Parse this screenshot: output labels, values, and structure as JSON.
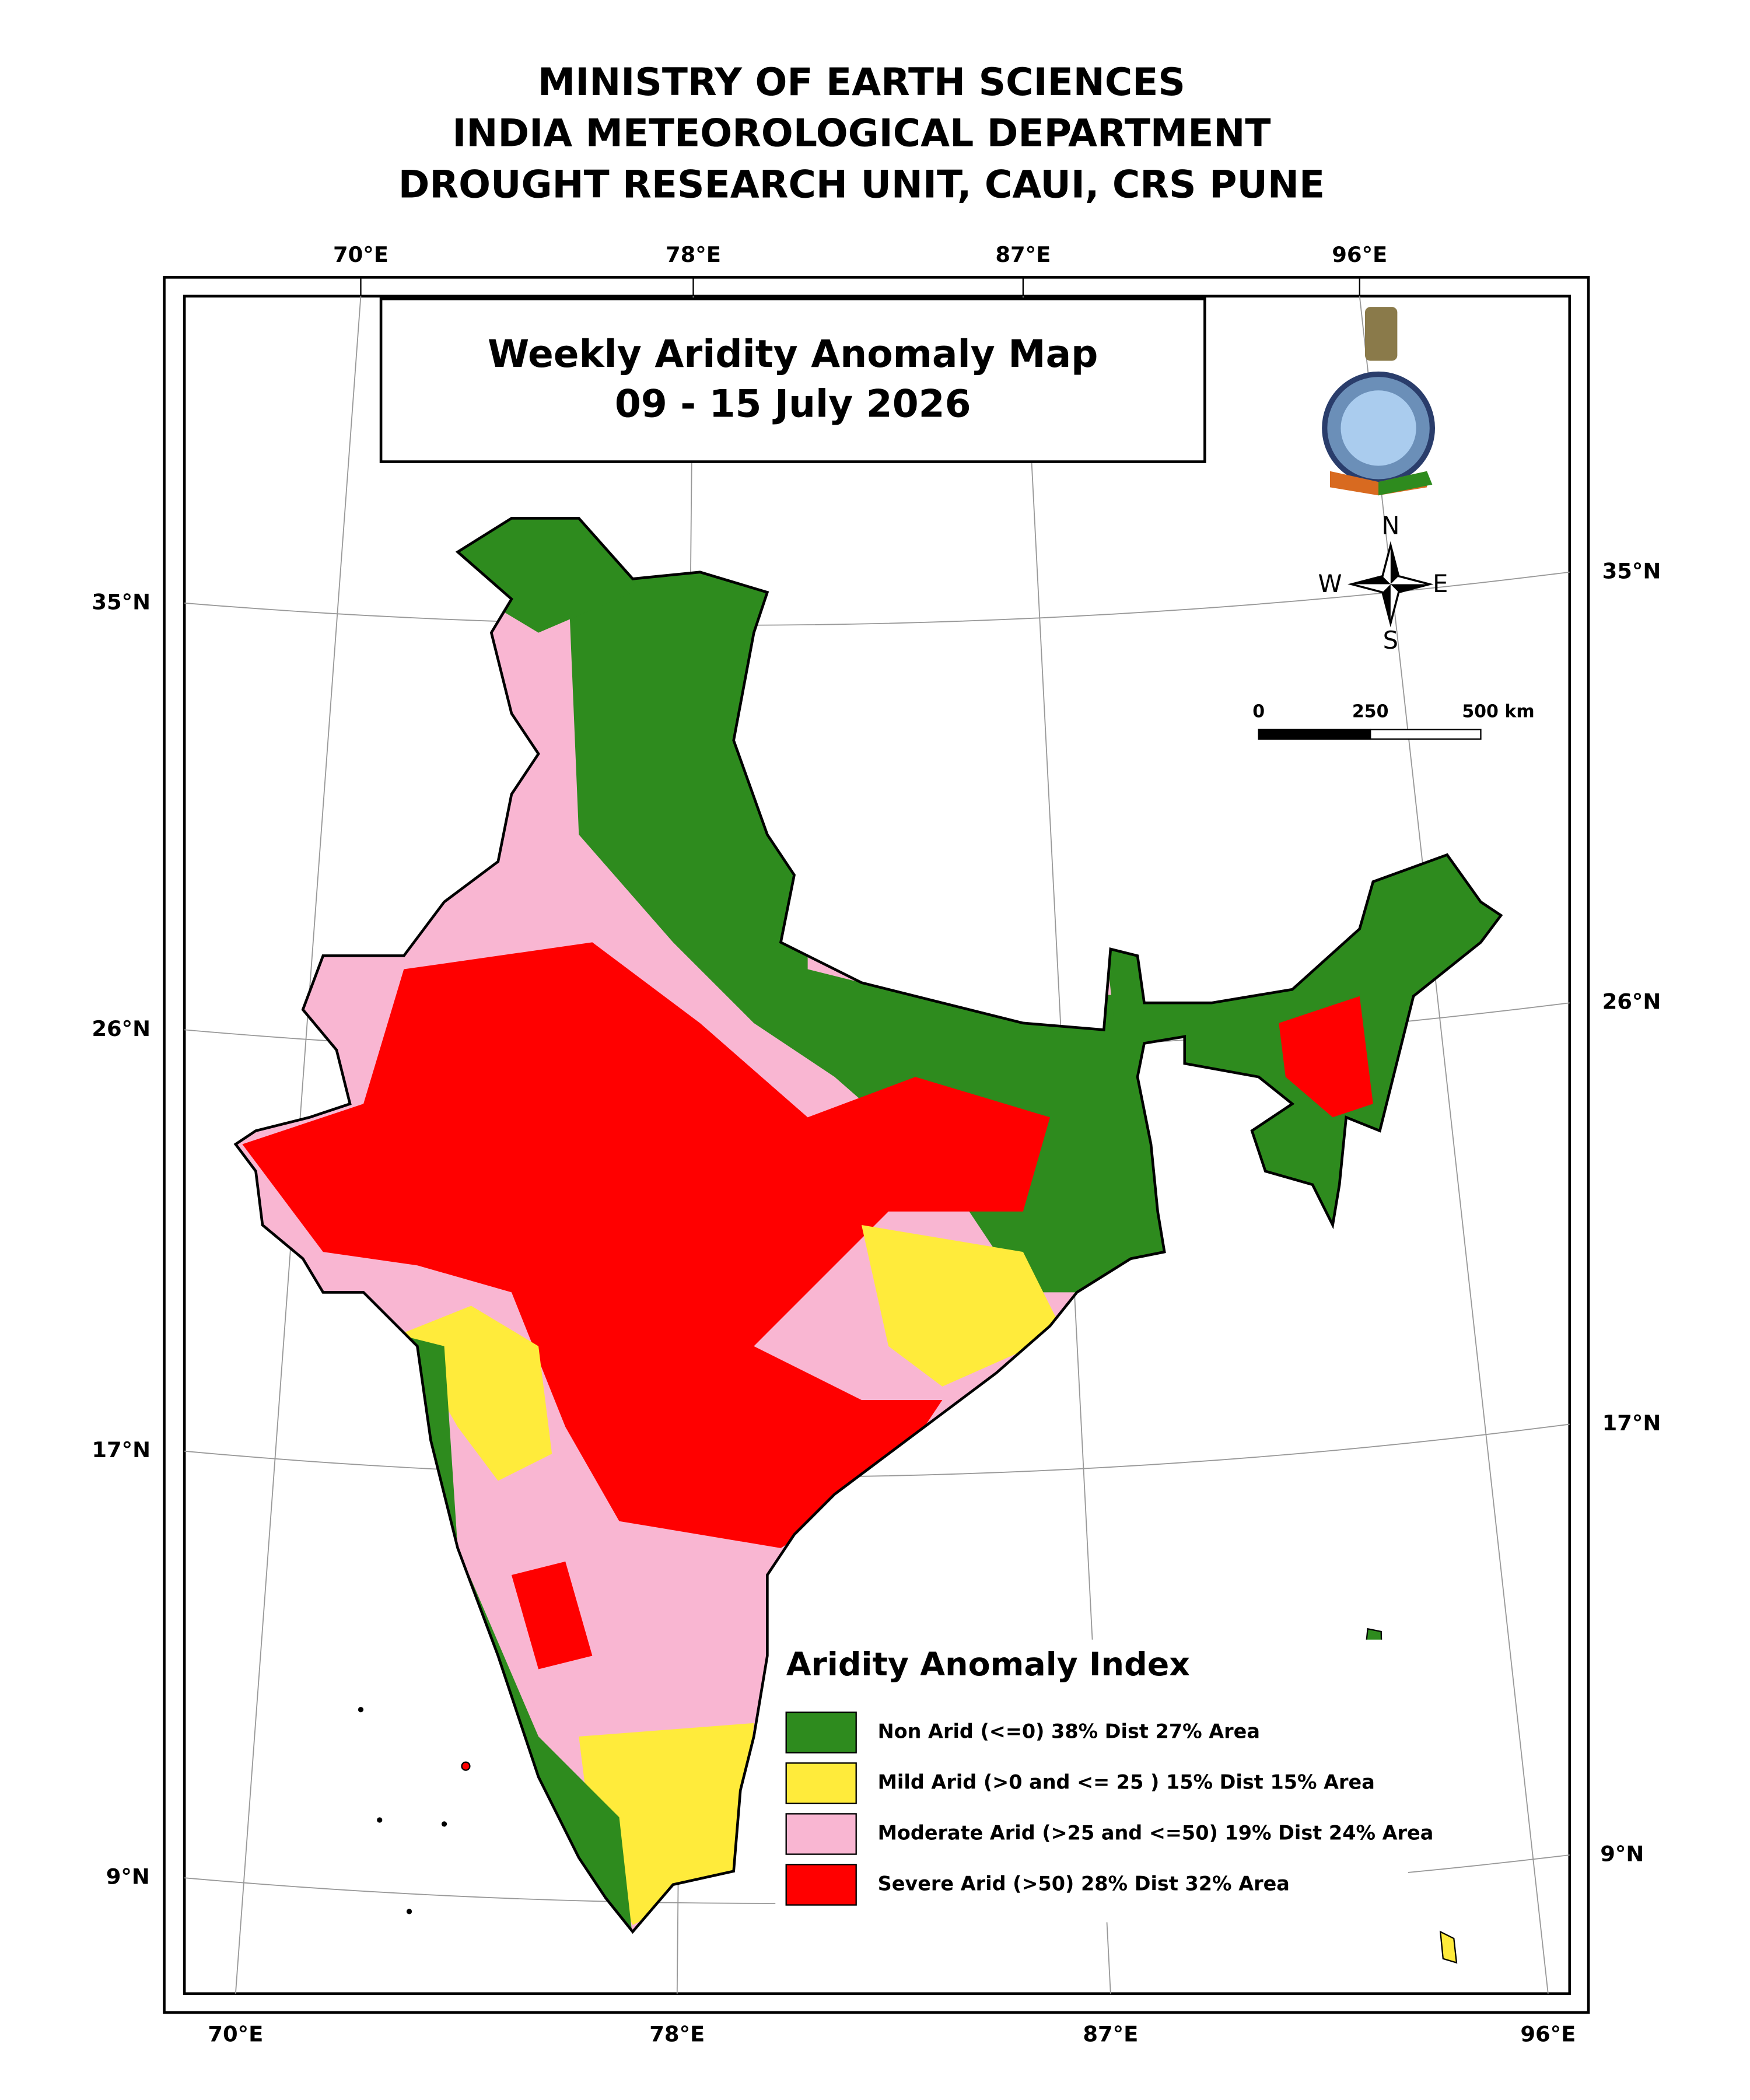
{
  "header": {
    "lines": [
      "MINISTRY OF EARTH SCIENCES",
      "INDIA METEOROLOGICAL DEPARTMENT",
      "DROUGHT RESEARCH UNIT, CAUI, CRS PUNE"
    ]
  },
  "map": {
    "title": "Weekly Aridity Anomaly Map",
    "date": "09 - 15 July 2026"
  },
  "graticule": {
    "top": [
      "70°E",
      "78°E",
      "87°E",
      "96°E"
    ],
    "bottom": [
      "70°E",
      "78°E",
      "87°E",
      "96°E"
    ],
    "left": [
      "35°N",
      "26°N",
      "17°N",
      "9°N"
    ],
    "right": [
      "35°N",
      "26°N",
      "17°N",
      "9°N"
    ]
  },
  "compass": {
    "n": "N",
    "e": "E",
    "s": "S",
    "w": "W"
  },
  "scale_bar": {
    "labels": [
      "0",
      "250",
      "500 km"
    ]
  },
  "legend": {
    "title": "Aridity Anomaly Index",
    "items": [
      {
        "label": "Non Arid (<=0) 38% Dist 27% Area",
        "color": "#2e8b1e"
      },
      {
        "label": "Mild Arid (>0 and <= 25 ) 15% Dist  15% Area",
        "color": "#ffeb3b"
      },
      {
        "label": "Moderate Arid (>25 and <=50) 19% Dist 24% Area",
        "color": "#f9b6d2"
      },
      {
        "label": "Severe Arid (>50) 28% Dist  32% Area",
        "color": "#ff0000"
      }
    ]
  }
}
